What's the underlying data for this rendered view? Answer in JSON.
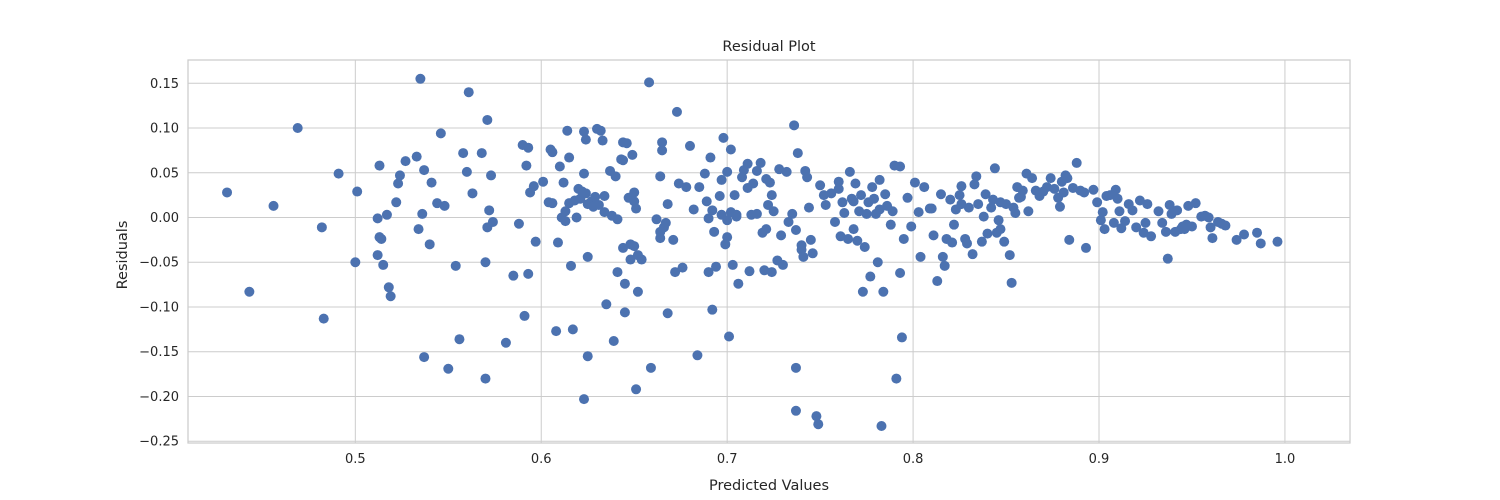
{
  "chart_data": {
    "type": "scatter",
    "title": "Residual Plot",
    "xlabel": "Predicted Values",
    "ylabel": "Residuals",
    "xlim": [
      0.41,
      1.035
    ],
    "ylim": [
      -0.252,
      0.176
    ],
    "xticks": [
      0.5,
      0.6,
      0.7,
      0.8,
      0.9,
      1.0
    ],
    "xtick_labels": [
      "0.5",
      "0.6",
      "0.7",
      "0.8",
      "0.9",
      "1.0"
    ],
    "yticks": [
      -0.25,
      -0.2,
      -0.15,
      -0.1,
      -0.05,
      0.0,
      0.05,
      0.1,
      0.15
    ],
    "ytick_labels": [
      "−0.25",
      "−0.20",
      "−0.15",
      "−0.10",
      "−0.05",
      "0.00",
      "0.05",
      "0.10",
      "0.15"
    ],
    "grid": true,
    "colors": {
      "marker": "#4c72b0",
      "grid": "#cccccc",
      "spine": "#cccccc",
      "background": "#ffffff",
      "text": "#262626"
    },
    "points": [
      [
        0.431,
        0.028
      ],
      [
        0.443,
        -0.083
      ],
      [
        0.456,
        0.013
      ],
      [
        0.469,
        0.1
      ],
      [
        0.482,
        -0.011
      ],
      [
        0.483,
        -0.113
      ],
      [
        0.491,
        0.049
      ],
      [
        0.5,
        -0.05
      ],
      [
        0.501,
        0.029
      ],
      [
        0.512,
        -0.001
      ],
      [
        0.512,
        -0.042
      ],
      [
        0.513,
        0.058
      ],
      [
        0.513,
        -0.022
      ],
      [
        0.514,
        -0.024
      ],
      [
        0.515,
        -0.053
      ],
      [
        0.517,
        0.003
      ],
      [
        0.518,
        -0.078
      ],
      [
        0.519,
        -0.088
      ],
      [
        0.522,
        0.017
      ],
      [
        0.523,
        0.038
      ],
      [
        0.524,
        0.047
      ],
      [
        0.527,
        0.063
      ],
      [
        0.533,
        0.068
      ],
      [
        0.534,
        -0.013
      ],
      [
        0.535,
        0.155
      ],
      [
        0.536,
        0.004
      ],
      [
        0.537,
        0.053
      ],
      [
        0.537,
        -0.156
      ],
      [
        0.54,
        -0.03
      ],
      [
        0.541,
        0.039
      ],
      [
        0.544,
        0.016
      ],
      [
        0.546,
        0.094
      ],
      [
        0.548,
        0.013
      ],
      [
        0.55,
        -0.169
      ],
      [
        0.554,
        -0.054
      ],
      [
        0.556,
        -0.136
      ],
      [
        0.558,
        0.072
      ],
      [
        0.56,
        0.051
      ],
      [
        0.561,
        0.14
      ],
      [
        0.563,
        0.027
      ],
      [
        0.568,
        0.072
      ],
      [
        0.57,
        -0.05
      ],
      [
        0.57,
        -0.18
      ],
      [
        0.571,
        0.109
      ],
      [
        0.571,
        -0.011
      ],
      [
        0.572,
        0.008
      ],
      [
        0.573,
        0.047
      ],
      [
        0.574,
        -0.005
      ],
      [
        0.581,
        -0.14
      ],
      [
        0.585,
        -0.065
      ],
      [
        0.588,
        -0.007
      ],
      [
        0.59,
        0.081
      ],
      [
        0.591,
        -0.11
      ],
      [
        0.592,
        0.058
      ],
      [
        0.593,
        0.078
      ],
      [
        0.593,
        -0.063
      ],
      [
        0.594,
        0.028
      ],
      [
        0.596,
        0.035
      ],
      [
        0.597,
        -0.027
      ],
      [
        0.601,
        0.04
      ],
      [
        0.604,
        0.017
      ],
      [
        0.605,
        0.076
      ],
      [
        0.606,
        0.073
      ],
      [
        0.606,
        0.016
      ],
      [
        0.608,
        -0.127
      ],
      [
        0.609,
        -0.028
      ],
      [
        0.61,
        0.057
      ],
      [
        0.611,
        0.0
      ],
      [
        0.612,
        0.039
      ],
      [
        0.613,
        0.007
      ],
      [
        0.613,
        -0.004
      ],
      [
        0.614,
        0.097
      ],
      [
        0.615,
        0.067
      ],
      [
        0.615,
        0.016
      ],
      [
        0.616,
        -0.054
      ],
      [
        0.617,
        -0.125
      ],
      [
        0.618,
        0.019
      ],
      [
        0.619,
        0.0
      ],
      [
        0.62,
        0.032
      ],
      [
        0.621,
        0.021
      ],
      [
        0.622,
        0.029
      ],
      [
        0.623,
        0.049
      ],
      [
        0.623,
        0.096
      ],
      [
        0.623,
        -0.203
      ],
      [
        0.624,
        0.087
      ],
      [
        0.624,
        0.027
      ],
      [
        0.625,
        0.015
      ],
      [
        0.625,
        -0.044
      ],
      [
        0.625,
        -0.155
      ],
      [
        0.627,
        0.018
      ],
      [
        0.628,
        0.012
      ],
      [
        0.629,
        0.023
      ],
      [
        0.63,
        0.099
      ],
      [
        0.631,
        0.014
      ],
      [
        0.632,
        0.097
      ],
      [
        0.633,
        0.086
      ],
      [
        0.634,
        0.006
      ],
      [
        0.634,
        0.024
      ],
      [
        0.635,
        -0.097
      ],
      [
        0.637,
        0.052
      ],
      [
        0.638,
        0.002
      ],
      [
        0.639,
        -0.138
      ],
      [
        0.64,
        0.046
      ],
      [
        0.641,
        -0.002
      ],
      [
        0.641,
        -0.061
      ],
      [
        0.643,
        0.065
      ],
      [
        0.644,
        0.064
      ],
      [
        0.644,
        0.084
      ],
      [
        0.644,
        -0.034
      ],
      [
        0.645,
        -0.074
      ],
      [
        0.645,
        -0.106
      ],
      [
        0.646,
        0.083
      ],
      [
        0.647,
        0.022
      ],
      [
        0.648,
        -0.03
      ],
      [
        0.648,
        -0.047
      ],
      [
        0.649,
        0.07
      ],
      [
        0.65,
        0.028
      ],
      [
        0.65,
        0.018
      ],
      [
        0.65,
        -0.032
      ],
      [
        0.651,
        0.01
      ],
      [
        0.651,
        -0.192
      ],
      [
        0.652,
        -0.042
      ],
      [
        0.652,
        -0.083
      ],
      [
        0.654,
        -0.047
      ],
      [
        0.658,
        0.151
      ],
      [
        0.659,
        -0.168
      ],
      [
        0.662,
        -0.002
      ],
      [
        0.664,
        0.046
      ],
      [
        0.664,
        -0.016
      ],
      [
        0.664,
        -0.023
      ],
      [
        0.665,
        0.084
      ],
      [
        0.665,
        0.075
      ],
      [
        0.666,
        -0.011
      ],
      [
        0.667,
        -0.006
      ],
      [
        0.668,
        0.015
      ],
      [
        0.668,
        -0.107
      ],
      [
        0.671,
        -0.025
      ],
      [
        0.672,
        -0.061
      ],
      [
        0.673,
        0.118
      ],
      [
        0.674,
        0.038
      ],
      [
        0.676,
        -0.056
      ],
      [
        0.678,
        0.034
      ],
      [
        0.68,
        0.08
      ],
      [
        0.682,
        0.009
      ],
      [
        0.684,
        -0.154
      ],
      [
        0.685,
        0.034
      ],
      [
        0.688,
        0.049
      ],
      [
        0.689,
        0.018
      ],
      [
        0.69,
        -0.001
      ],
      [
        0.69,
        -0.061
      ],
      [
        0.691,
        0.067
      ],
      [
        0.692,
        0.008
      ],
      [
        0.692,
        -0.103
      ],
      [
        0.693,
        -0.016
      ],
      [
        0.694,
        -0.055
      ],
      [
        0.696,
        0.024
      ],
      [
        0.697,
        0.003
      ],
      [
        0.697,
        0.042
      ],
      [
        0.698,
        0.089
      ],
      [
        0.699,
        -0.03
      ],
      [
        0.7,
        -0.003
      ],
      [
        0.7,
        0.051
      ],
      [
        0.7,
        -0.022
      ],
      [
        0.701,
        -0.133
      ],
      [
        0.702,
        0.076
      ],
      [
        0.702,
        0.006
      ],
      [
        0.703,
        -0.053
      ],
      [
        0.704,
        0.025
      ],
      [
        0.705,
        0.003
      ],
      [
        0.705,
        0.001
      ],
      [
        0.706,
        -0.074
      ],
      [
        0.708,
        0.045
      ],
      [
        0.709,
        0.053
      ],
      [
        0.711,
        0.06
      ],
      [
        0.711,
        0.033
      ],
      [
        0.712,
        -0.06
      ],
      [
        0.713,
        0.003
      ],
      [
        0.714,
        0.038
      ],
      [
        0.716,
        0.052
      ],
      [
        0.716,
        0.004
      ],
      [
        0.718,
        0.061
      ],
      [
        0.719,
        -0.017
      ],
      [
        0.72,
        -0.059
      ],
      [
        0.721,
        -0.013
      ],
      [
        0.721,
        0.043
      ],
      [
        0.722,
        0.014
      ],
      [
        0.723,
        0.039
      ],
      [
        0.724,
        -0.061
      ],
      [
        0.724,
        0.025
      ],
      [
        0.725,
        0.007
      ],
      [
        0.727,
        -0.048
      ],
      [
        0.728,
        0.054
      ],
      [
        0.729,
        -0.02
      ],
      [
        0.73,
        -0.053
      ],
      [
        0.732,
        0.051
      ],
      [
        0.733,
        -0.005
      ],
      [
        0.735,
        0.004
      ],
      [
        0.736,
        0.103
      ],
      [
        0.737,
        -0.014
      ],
      [
        0.737,
        -0.216
      ],
      [
        0.737,
        -0.168
      ],
      [
        0.738,
        0.072
      ],
      [
        0.74,
        -0.031
      ],
      [
        0.74,
        -0.036
      ],
      [
        0.741,
        -0.044
      ],
      [
        0.742,
        0.052
      ],
      [
        0.743,
        0.045
      ],
      [
        0.744,
        0.011
      ],
      [
        0.745,
        -0.025
      ],
      [
        0.746,
        -0.04
      ],
      [
        0.748,
        -0.222
      ],
      [
        0.749,
        -0.231
      ],
      [
        0.75,
        0.036
      ],
      [
        0.752,
        0.025
      ],
      [
        0.753,
        0.014
      ],
      [
        0.756,
        0.027
      ],
      [
        0.758,
        -0.005
      ],
      [
        0.76,
        0.04
      ],
      [
        0.76,
        0.032
      ],
      [
        0.761,
        -0.021
      ],
      [
        0.762,
        0.017
      ],
      [
        0.763,
        0.005
      ],
      [
        0.765,
        -0.024
      ],
      [
        0.766,
        0.051
      ],
      [
        0.767,
        0.021
      ],
      [
        0.768,
        0.018
      ],
      [
        0.768,
        -0.013
      ],
      [
        0.769,
        0.038
      ],
      [
        0.77,
        -0.026
      ],
      [
        0.771,
        0.007
      ],
      [
        0.772,
        0.025
      ],
      [
        0.773,
        -0.083
      ],
      [
        0.774,
        -0.033
      ],
      [
        0.775,
        0.004
      ],
      [
        0.776,
        0.017
      ],
      [
        0.777,
        -0.066
      ],
      [
        0.778,
        0.034
      ],
      [
        0.779,
        0.021
      ],
      [
        0.78,
        0.004
      ],
      [
        0.781,
        -0.05
      ],
      [
        0.782,
        0.042
      ],
      [
        0.782,
        0.009
      ],
      [
        0.783,
        -0.233
      ],
      [
        0.784,
        -0.083
      ],
      [
        0.785,
        0.026
      ],
      [
        0.786,
        0.013
      ],
      [
        0.788,
        -0.008
      ],
      [
        0.789,
        0.007
      ],
      [
        0.79,
        0.058
      ],
      [
        0.791,
        -0.18
      ],
      [
        0.793,
        0.057
      ],
      [
        0.793,
        -0.062
      ],
      [
        0.794,
        -0.134
      ],
      [
        0.795,
        -0.024
      ],
      [
        0.797,
        0.022
      ],
      [
        0.799,
        -0.01
      ],
      [
        0.801,
        0.039
      ],
      [
        0.803,
        0.006
      ],
      [
        0.804,
        -0.044
      ],
      [
        0.806,
        0.034
      ],
      [
        0.809,
        0.01
      ],
      [
        0.81,
        0.01
      ],
      [
        0.811,
        -0.02
      ],
      [
        0.813,
        -0.071
      ],
      [
        0.815,
        0.026
      ],
      [
        0.816,
        -0.044
      ],
      [
        0.817,
        -0.054
      ],
      [
        0.818,
        -0.024
      ],
      [
        0.82,
        0.02
      ],
      [
        0.821,
        -0.028
      ],
      [
        0.822,
        -0.008
      ],
      [
        0.823,
        0.009
      ],
      [
        0.825,
        0.025
      ],
      [
        0.826,
        0.035
      ],
      [
        0.826,
        0.015
      ],
      [
        0.828,
        -0.024
      ],
      [
        0.829,
        -0.029
      ],
      [
        0.83,
        0.011
      ],
      [
        0.832,
        -0.041
      ],
      [
        0.833,
        0.037
      ],
      [
        0.834,
        0.046
      ],
      [
        0.835,
        0.015
      ],
      [
        0.837,
        -0.027
      ],
      [
        0.838,
        0.001
      ],
      [
        0.839,
        0.026
      ],
      [
        0.84,
        -0.018
      ],
      [
        0.842,
        0.011
      ],
      [
        0.843,
        0.02
      ],
      [
        0.844,
        0.055
      ],
      [
        0.845,
        -0.017
      ],
      [
        0.846,
        -0.003
      ],
      [
        0.847,
        0.017
      ],
      [
        0.847,
        -0.013
      ],
      [
        0.849,
        -0.027
      ],
      [
        0.85,
        0.015
      ],
      [
        0.852,
        -0.042
      ],
      [
        0.853,
        -0.073
      ],
      [
        0.854,
        0.011
      ],
      [
        0.855,
        0.005
      ],
      [
        0.856,
        0.034
      ],
      [
        0.857,
        0.022
      ],
      [
        0.858,
        0.023
      ],
      [
        0.859,
        0.03
      ],
      [
        0.861,
        0.049
      ],
      [
        0.862,
        0.007
      ],
      [
        0.864,
        0.044
      ],
      [
        0.866,
        0.03
      ],
      [
        0.868,
        0.024
      ],
      [
        0.87,
        0.029
      ],
      [
        0.872,
        0.034
      ],
      [
        0.874,
        0.044
      ],
      [
        0.876,
        0.032
      ],
      [
        0.878,
        0.022
      ],
      [
        0.879,
        0.012
      ],
      [
        0.88,
        0.04
      ],
      [
        0.881,
        0.028
      ],
      [
        0.882,
        0.047
      ],
      [
        0.883,
        0.044
      ],
      [
        0.884,
        -0.025
      ],
      [
        0.886,
        0.033
      ],
      [
        0.888,
        0.061
      ],
      [
        0.89,
        0.03
      ],
      [
        0.892,
        0.028
      ],
      [
        0.893,
        -0.034
      ],
      [
        0.897,
        0.031
      ],
      [
        0.899,
        0.017
      ],
      [
        0.901,
        -0.003
      ],
      [
        0.902,
        0.006
      ],
      [
        0.903,
        -0.013
      ],
      [
        0.904,
        0.024
      ],
      [
        0.906,
        0.025
      ],
      [
        0.908,
        -0.006
      ],
      [
        0.909,
        0.031
      ],
      [
        0.91,
        0.021
      ],
      [
        0.911,
        0.007
      ],
      [
        0.912,
        -0.012
      ],
      [
        0.914,
        -0.004
      ],
      [
        0.916,
        0.015
      ],
      [
        0.918,
        0.008
      ],
      [
        0.92,
        -0.011
      ],
      [
        0.922,
        0.019
      ],
      [
        0.924,
        -0.017
      ],
      [
        0.925,
        -0.006
      ],
      [
        0.926,
        0.015
      ],
      [
        0.928,
        -0.021
      ],
      [
        0.932,
        0.007
      ],
      [
        0.934,
        -0.006
      ],
      [
        0.936,
        -0.016
      ],
      [
        0.937,
        -0.046
      ],
      [
        0.938,
        0.014
      ],
      [
        0.939,
        0.004
      ],
      [
        0.941,
        -0.016
      ],
      [
        0.942,
        0.008
      ],
      [
        0.944,
        -0.013
      ],
      [
        0.945,
        -0.01
      ],
      [
        0.946,
        -0.013
      ],
      [
        0.947,
        -0.008
      ],
      [
        0.948,
        0.013
      ],
      [
        0.95,
        -0.01
      ],
      [
        0.952,
        0.016
      ],
      [
        0.955,
        0.001
      ],
      [
        0.957,
        0.002
      ],
      [
        0.959,
        0.0
      ],
      [
        0.96,
        -0.011
      ],
      [
        0.961,
        -0.023
      ],
      [
        0.964,
        -0.005
      ],
      [
        0.966,
        -0.007
      ],
      [
        0.968,
        -0.009
      ],
      [
        0.974,
        -0.025
      ],
      [
        0.978,
        -0.019
      ],
      [
        0.985,
        -0.017
      ],
      [
        0.987,
        -0.029
      ],
      [
        0.996,
        -0.027
      ]
    ]
  }
}
